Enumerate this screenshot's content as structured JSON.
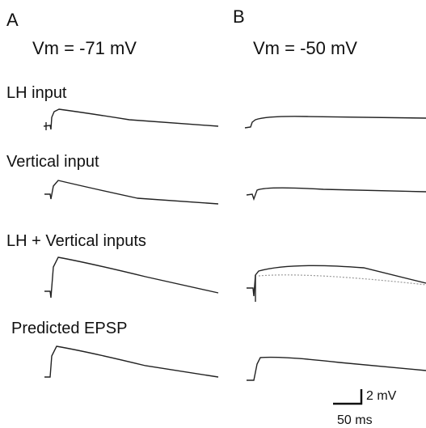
{
  "panels": [
    {
      "label": "A",
      "potential": "Vm = -71 mV"
    },
    {
      "label": "B",
      "potential": "Vm = -50 mV"
    }
  ],
  "rows": [
    "LH input",
    "Vertical input",
    "LH + Vertical inputs",
    "Predicted EPSP"
  ],
  "scale_bar": {
    "vertical": "2 mV",
    "horizontal": "50 ms"
  }
}
